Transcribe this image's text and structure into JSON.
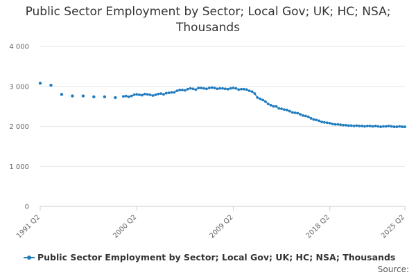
{
  "chart_data": {
    "type": "line",
    "title": "Public Sector Employment by Sector; Local Gov; UK; HC; NSA; Thousands",
    "xlabel": "",
    "ylabel": "",
    "ylim": [
      0,
      4000
    ],
    "y_ticks": [
      0,
      1000,
      2000,
      3000,
      4000
    ],
    "y_tick_labels": [
      "0",
      "1 000",
      "2 000",
      "3 000",
      "4 000"
    ],
    "x_tick_labels": [
      "1991 Q2",
      "2000 Q2",
      "2009 Q2",
      "2018 Q2",
      "2025 Q2"
    ],
    "x_tick_years": [
      1991.25,
      2000.25,
      2009.25,
      2018.25,
      2025.25
    ],
    "grid": true,
    "legend_position": "bottom-left",
    "series_color": "#1f7cbf",
    "series": [
      {
        "name": "Public Sector Employment by Sector; Local Gov; UK; HC; NSA; Thousands",
        "annual": {
          "x": [
            "1991 Q2",
            "1992 Q2",
            "1993 Q2",
            "1994 Q2",
            "1995 Q2",
            "1996 Q2",
            "1997 Q2",
            "1998 Q2"
          ],
          "values": [
            3080,
            3030,
            2800,
            2760,
            2760,
            2740,
            2740,
            2720
          ]
        },
        "quarterly": {
          "start": "1999 Q1",
          "end": "2025 Q2",
          "values": [
            2750,
            2760,
            2740,
            2760,
            2790,
            2800,
            2790,
            2780,
            2810,
            2800,
            2790,
            2770,
            2790,
            2810,
            2820,
            2800,
            2830,
            2840,
            2850,
            2850,
            2890,
            2910,
            2910,
            2900,
            2930,
            2950,
            2940,
            2920,
            2960,
            2960,
            2950,
            2940,
            2960,
            2970,
            2960,
            2940,
            2950,
            2950,
            2940,
            2930,
            2950,
            2960,
            2950,
            2920,
            2930,
            2930,
            2920,
            2890,
            2870,
            2820,
            2720,
            2690,
            2660,
            2620,
            2560,
            2530,
            2500,
            2500,
            2450,
            2440,
            2420,
            2410,
            2380,
            2350,
            2340,
            2330,
            2300,
            2270,
            2260,
            2240,
            2200,
            2170,
            2160,
            2140,
            2110,
            2100,
            2090,
            2080,
            2060,
            2050,
            2050,
            2040,
            2030,
            2030,
            2020,
            2020,
            2010,
            2020,
            2010,
            2010,
            2000,
            2010,
            2010,
            2000,
            2010,
            2000,
            1990,
            2000,
            2000,
            2010,
            2000,
            1990,
            1990,
            2000,
            1990,
            1990
          ]
        }
      }
    ]
  },
  "source_label": "Source:"
}
